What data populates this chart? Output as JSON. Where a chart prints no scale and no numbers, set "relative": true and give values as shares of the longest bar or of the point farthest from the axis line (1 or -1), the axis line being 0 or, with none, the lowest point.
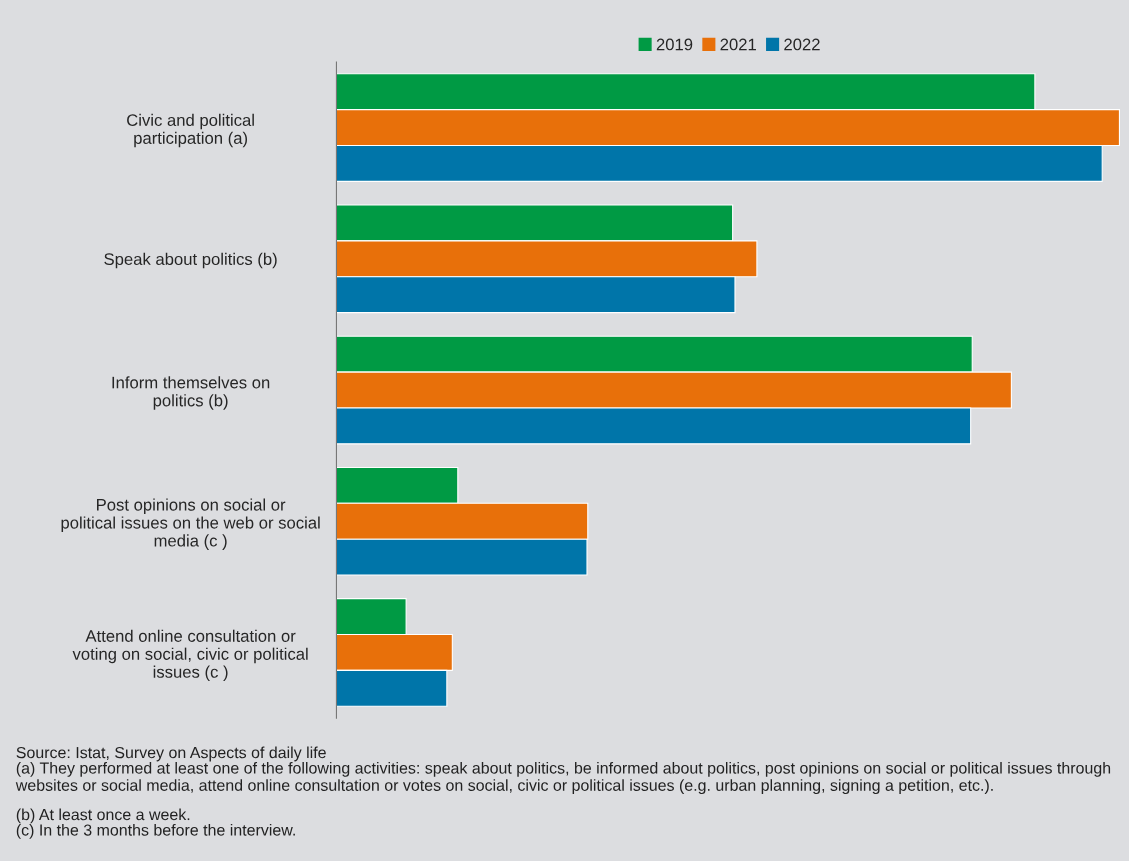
{
  "chart_data": {
    "type": "bar",
    "orientation": "horizontal",
    "relative": true,
    "legend": "top",
    "grid": false,
    "categories": [
      "Civic and political\nparticipation (a)",
      "Speak about politics (b)",
      "Inform themselves on\npolitics (b)",
      "Post opinions on social or\npolitical issues on the web or social\nmedia (c )",
      "Attend online consultation or\nvoting on social, civic or political\nissues (c )"
    ],
    "series": [
      {
        "name": "2019",
        "color": "#009a44",
        "values": [
          0.892,
          0.506,
          0.812,
          0.155,
          0.089
        ]
      },
      {
        "name": "2021",
        "color": "#e8700a",
        "values": [
          1.0,
          0.537,
          0.862,
          0.321,
          0.148
        ]
      },
      {
        "name": "2022",
        "color": "#0075a9",
        "values": [
          0.978,
          0.509,
          0.81,
          0.32,
          0.141
        ]
      }
    ],
    "annotations": [
      "Source: Istat, Survey on Aspects of daily life",
      "(a) They performed at least one of the following activities: speak about politics, be informed about politics, post opinions on social or political issues through websites or social media, attend online consultation or votes on social, civic or political issues (e.g. urban planning, signing a petition, etc.).",
      "(b) At least once a week.",
      "(c) In the 3 months before the interview."
    ]
  }
}
